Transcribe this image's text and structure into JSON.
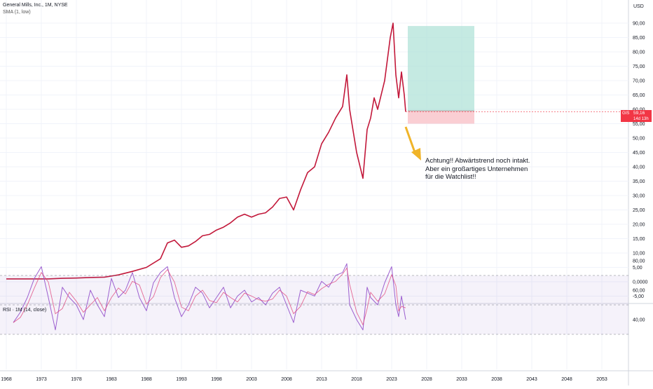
{
  "header": {
    "symbol_line": "General Mills, Inc., 1M, NYSE",
    "indicator_line": "SMA (1, low)",
    "currency": "USD"
  },
  "price_badge": {
    "symbol": "GIS",
    "value": "59,16",
    "countdown": "14d 13h"
  },
  "annotation": {
    "lines": [
      "Achtung!! Abwärtstrend noch intakt.",
      "Aber ein großartiges Unternehmen",
      "für die Watchlist!!"
    ],
    "arrow_color": "#f0b429"
  },
  "rsi": {
    "label": "RSI · 1M (14, close)"
  },
  "colors": {
    "price_line": "#c2183a",
    "rsi_line": "#9c5fcf",
    "rsi_ma": "#e0457b",
    "target_zone": "#b2e3d8",
    "stop_zone": "#f9c5cb",
    "badge": "#f23645"
  },
  "chart_data": [
    {
      "type": "line",
      "title": "General Mills, Inc., 1M, NYSE",
      "series": [
        {
          "name": "GIS",
          "points": [
            [
              1968,
              1.0
            ],
            [
              1970,
              1.0
            ],
            [
              1972,
              1.0
            ],
            [
              1974,
              1.0
            ],
            [
              1976,
              1.2
            ],
            [
              1978,
              1.3
            ],
            [
              1980,
              1.5
            ],
            [
              1982,
              1.6
            ],
            [
              1984,
              2.4
            ],
            [
              1986,
              3.6
            ],
            [
              1988,
              5.0
            ],
            [
              1990,
              8.0
            ],
            [
              1991,
              13.5
            ],
            [
              1992,
              14.5
            ],
            [
              1993,
              12.0
            ],
            [
              1994,
              12.5
            ],
            [
              1995,
              14.0
            ],
            [
              1996,
              16.0
            ],
            [
              1997,
              16.5
            ],
            [
              1998,
              18.0
            ],
            [
              1999,
              19.0
            ],
            [
              2000,
              20.5
            ],
            [
              2001,
              22.5
            ],
            [
              2002,
              23.5
            ],
            [
              2003,
              22.5
            ],
            [
              2004,
              23.5
            ],
            [
              2005,
              24.0
            ],
            [
              2006,
              26.0
            ],
            [
              2007,
              29.0
            ],
            [
              2008,
              29.5
            ],
            [
              2009,
              25.0
            ],
            [
              2010,
              32.0
            ],
            [
              2011,
              38.0
            ],
            [
              2012,
              40.0
            ],
            [
              2013,
              48.0
            ],
            [
              2014,
              52.0
            ],
            [
              2015,
              57.0
            ],
            [
              2016,
              61.0
            ],
            [
              2016.6,
              72.0
            ],
            [
              2017,
              60.0
            ],
            [
              2018,
              45.0
            ],
            [
              2018.9,
              36.0
            ],
            [
              2019.5,
              53.0
            ],
            [
              2020,
              57.0
            ],
            [
              2020.5,
              64.0
            ],
            [
              2021,
              60.0
            ],
            [
              2022,
              70.0
            ],
            [
              2022.8,
              85.0
            ],
            [
              2023.2,
              90.0
            ],
            [
              2023.6,
              72.0
            ],
            [
              2024,
              64.0
            ],
            [
              2024.4,
              73.0
            ],
            [
              2024.8,
              65.0
            ],
            [
              2025,
              59.16
            ]
          ]
        }
      ],
      "xlim": [
        1968,
        2055
      ],
      "ylim": [
        -8,
        92
      ],
      "x_ticks": [
        "1968",
        "1973",
        "1978",
        "1983",
        "1988",
        "1993",
        "1998",
        "2003",
        "2008",
        "2013",
        "2018",
        "2023",
        "2028",
        "2033",
        "2038",
        "2043",
        "2048",
        "2053"
      ],
      "y_ticks": [
        "90,00",
        "85,00",
        "80,00",
        "75,00",
        "70,00",
        "65,00",
        "60,00",
        "55,00",
        "50,00",
        "45,00",
        "40,00",
        "35,00",
        "30,00",
        "25,00",
        "20,00",
        "15,00",
        "10,00",
        "5,00",
        "0,0000",
        "-5,00"
      ],
      "position_tool": {
        "entry": 59.5,
        "target": 89,
        "stop": 55,
        "x_start": 2025.3,
        "x_end": 2034.8
      },
      "grid": true
    },
    {
      "type": "line",
      "title": "RSI · 1M (14, close)",
      "ylim": [
        28,
        85
      ],
      "y_ticks": [
        "80,00",
        "60,00",
        "40,00"
      ],
      "band_levels": [
        70,
        50,
        30
      ],
      "series": [
        {
          "name": "RSI",
          "points": [
            [
              1969,
              38
            ],
            [
              1970,
              45
            ],
            [
              1971,
              55
            ],
            [
              1972,
              68
            ],
            [
              1973,
              76
            ],
            [
              1974,
              55
            ],
            [
              1975,
              33
            ],
            [
              1976,
              62
            ],
            [
              1977,
              55
            ],
            [
              1978,
              50
            ],
            [
              1979,
              40
            ],
            [
              1980,
              60
            ],
            [
              1981,
              50
            ],
            [
              1982,
              42
            ],
            [
              1983,
              68
            ],
            [
              1984,
              55
            ],
            [
              1985,
              60
            ],
            [
              1986,
              72
            ],
            [
              1987,
              55
            ],
            [
              1988,
              46
            ],
            [
              1989,
              65
            ],
            [
              1990,
              72
            ],
            [
              1991,
              76
            ],
            [
              1992,
              55
            ],
            [
              1993,
              42
            ],
            [
              1994,
              50
            ],
            [
              1995,
              62
            ],
            [
              1996,
              58
            ],
            [
              1997,
              48
            ],
            [
              1998,
              55
            ],
            [
              1999,
              62
            ],
            [
              2000,
              48
            ],
            [
              2001,
              56
            ],
            [
              2002,
              60
            ],
            [
              2003,
              52
            ],
            [
              2004,
              55
            ],
            [
              2005,
              50
            ],
            [
              2006,
              58
            ],
            [
              2007,
              62
            ],
            [
              2008,
              50
            ],
            [
              2009,
              38
            ],
            [
              2010,
              60
            ],
            [
              2011,
              58
            ],
            [
              2012,
              56
            ],
            [
              2013,
              66
            ],
            [
              2014,
              62
            ],
            [
              2015,
              70
            ],
            [
              2016,
              72
            ],
            [
              2016.6,
              78
            ],
            [
              2017,
              50
            ],
            [
              2018,
              40
            ],
            [
              2018.9,
              33
            ],
            [
              2019.5,
              62
            ],
            [
              2020,
              55
            ],
            [
              2021,
              50
            ],
            [
              2022,
              65
            ],
            [
              2023,
              76
            ],
            [
              2023.6,
              50
            ],
            [
              2024,
              42
            ],
            [
              2024.4,
              56
            ],
            [
              2025,
              40
            ]
          ]
        }
      ]
    }
  ]
}
